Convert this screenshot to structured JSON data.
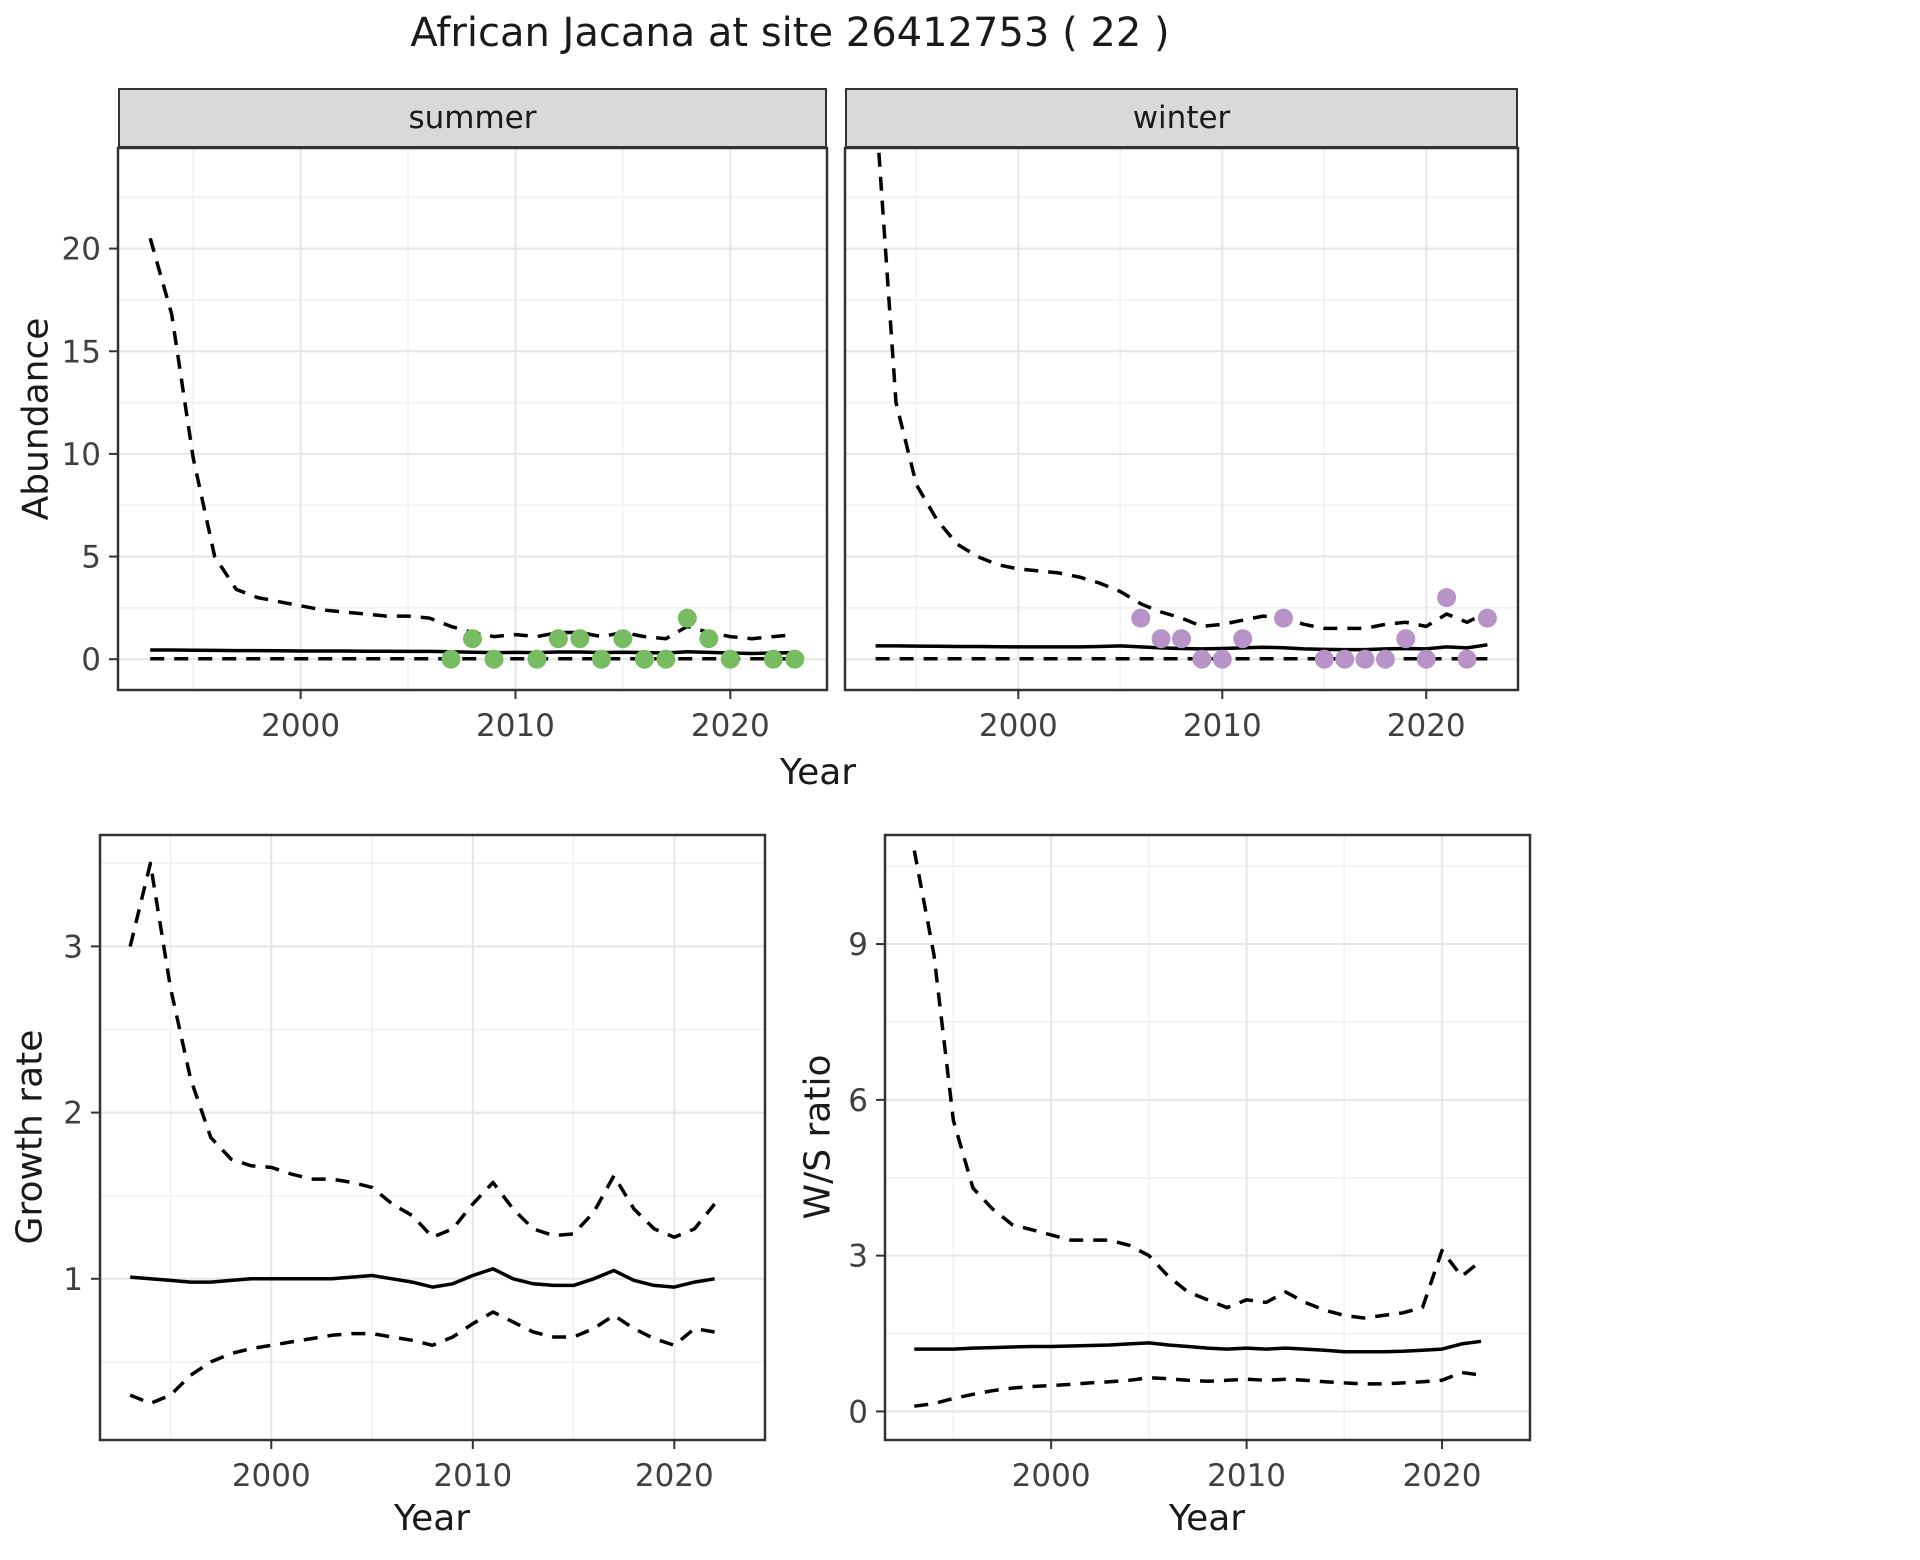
{
  "title": "African Jacana at site 26412753 ( 22 )",
  "axis": {
    "x": "Year"
  },
  "colors": {
    "summer_point": "#78bc62",
    "winter_point": "#b793c8",
    "line": "#000000",
    "grid_major": "#e6e6e6",
    "grid_minor": "#f1f1f1",
    "panel_border": "#333333",
    "strip_bg": "#d9d9d9",
    "tick_label": "#404040"
  },
  "chart_data": [
    {
      "id": "summer",
      "type": "line",
      "facet_label": "summer",
      "title": "",
      "xlabel": "Year",
      "ylabel": "Abundance",
      "xlim": [
        1991.5,
        2024.5
      ],
      "ylim": [
        -1.5,
        24.9
      ],
      "x_ticks": [
        2000,
        2010,
        2020
      ],
      "y_ticks": [
        0,
        5,
        10,
        15,
        20
      ],
      "x_minor": [
        1995,
        2005,
        2015
      ],
      "y_minor": [
        2.5,
        7.5,
        12.5,
        17.5,
        22.5
      ],
      "show_y_tick_labels": true,
      "series": [
        {
          "name": "upper_ci",
          "style": "dashed",
          "x": [
            1993,
            1994,
            1995,
            1996,
            1997,
            1998,
            1999,
            2000,
            2001,
            2002,
            2003,
            2004,
            2005,
            2006,
            2007,
            2008,
            2009,
            2010,
            2011,
            2012,
            2013,
            2014,
            2015,
            2016,
            2017,
            2018,
            2019,
            2020,
            2021,
            2022,
            2023
          ],
          "y": [
            20.5,
            16.8,
            9.8,
            5.0,
            3.4,
            3.0,
            2.8,
            2.6,
            2.4,
            2.3,
            2.2,
            2.1,
            2.1,
            2.0,
            1.6,
            1.3,
            1.1,
            1.2,
            1.1,
            1.3,
            1.3,
            1.1,
            1.3,
            1.1,
            1.0,
            1.6,
            1.3,
            1.1,
            1.0,
            1.1,
            1.2
          ]
        },
        {
          "name": "median",
          "style": "solid",
          "x": [
            1993,
            1994,
            1995,
            1996,
            1997,
            1998,
            1999,
            2000,
            2001,
            2002,
            2003,
            2004,
            2005,
            2006,
            2007,
            2008,
            2009,
            2010,
            2011,
            2012,
            2013,
            2014,
            2015,
            2016,
            2017,
            2018,
            2019,
            2020,
            2021,
            2022,
            2023
          ],
          "y": [
            0.45,
            0.45,
            0.44,
            0.43,
            0.42,
            0.42,
            0.41,
            0.4,
            0.4,
            0.4,
            0.39,
            0.39,
            0.38,
            0.38,
            0.36,
            0.34,
            0.32,
            0.33,
            0.32,
            0.35,
            0.35,
            0.32,
            0.34,
            0.32,
            0.3,
            0.36,
            0.33,
            0.3,
            0.28,
            0.3,
            0.32
          ]
        },
        {
          "name": "lower_ci",
          "style": "dashed",
          "x": [
            1993,
            1994,
            1995,
            1996,
            1997,
            1998,
            1999,
            2000,
            2001,
            2002,
            2003,
            2004,
            2005,
            2006,
            2007,
            2008,
            2009,
            2010,
            2011,
            2012,
            2013,
            2014,
            2015,
            2016,
            2017,
            2018,
            2019,
            2020,
            2021,
            2022,
            2023
          ],
          "y": [
            0.02,
            0.02,
            0.02,
            0.02,
            0.02,
            0.02,
            0.02,
            0.02,
            0.02,
            0.02,
            0.02,
            0.02,
            0.02,
            0.02,
            0.02,
            0.02,
            0.02,
            0.02,
            0.02,
            0.02,
            0.02,
            0.02,
            0.02,
            0.02,
            0.02,
            0.02,
            0.02,
            0.02,
            0.02,
            0.02,
            0.02
          ]
        }
      ],
      "points": {
        "color": "#78bc62",
        "x": [
          2007,
          2008,
          2009,
          2011,
          2012,
          2013,
          2014,
          2015,
          2016,
          2017,
          2018,
          2019,
          2020,
          2022,
          2023
        ],
        "y": [
          0,
          1,
          0,
          0,
          1,
          1,
          0,
          1,
          0,
          0,
          2,
          1,
          0,
          0,
          0
        ]
      }
    },
    {
      "id": "winter",
      "type": "line",
      "facet_label": "winter",
      "title": "",
      "xlabel": "Year",
      "ylabel": "Abundance",
      "xlim": [
        1991.5,
        2024.5
      ],
      "ylim": [
        -1.5,
        24.9
      ],
      "x_ticks": [
        2000,
        2010,
        2020
      ],
      "y_ticks": [
        0,
        5,
        10,
        15,
        20
      ],
      "x_minor": [
        1995,
        2005,
        2015
      ],
      "y_minor": [
        2.5,
        7.5,
        12.5,
        17.5,
        22.5
      ],
      "show_y_tick_labels": false,
      "series": [
        {
          "name": "upper_ci",
          "style": "dashed",
          "x": [
            1993,
            1994,
            1995,
            1996,
            1997,
            1998,
            1999,
            2000,
            2001,
            2002,
            2003,
            2004,
            2005,
            2006,
            2007,
            2008,
            2009,
            2010,
            2011,
            2012,
            2013,
            2014,
            2015,
            2016,
            2017,
            2018,
            2019,
            2020,
            2021,
            2022,
            2023
          ],
          "y": [
            27.0,
            12.5,
            8.5,
            6.8,
            5.6,
            5.0,
            4.6,
            4.4,
            4.3,
            4.2,
            4.0,
            3.7,
            3.3,
            2.7,
            2.3,
            2.0,
            1.6,
            1.7,
            1.9,
            2.1,
            2.0,
            1.7,
            1.5,
            1.5,
            1.5,
            1.7,
            1.8,
            1.6,
            2.2,
            1.8,
            2.3
          ]
        },
        {
          "name": "median",
          "style": "solid",
          "x": [
            1993,
            1994,
            1995,
            1996,
            1997,
            1998,
            1999,
            2000,
            2001,
            2002,
            2003,
            2004,
            2005,
            2006,
            2007,
            2008,
            2009,
            2010,
            2011,
            2012,
            2013,
            2014,
            2015,
            2016,
            2017,
            2018,
            2019,
            2020,
            2021,
            2022,
            2023
          ],
          "y": [
            0.65,
            0.65,
            0.64,
            0.63,
            0.62,
            0.62,
            0.61,
            0.6,
            0.6,
            0.6,
            0.6,
            0.62,
            0.65,
            0.6,
            0.55,
            0.52,
            0.5,
            0.52,
            0.55,
            0.58,
            0.56,
            0.5,
            0.48,
            0.47,
            0.47,
            0.5,
            0.52,
            0.5,
            0.6,
            0.55,
            0.7
          ]
        },
        {
          "name": "lower_ci",
          "style": "dashed",
          "x": [
            1993,
            1994,
            1995,
            1996,
            1997,
            1998,
            1999,
            2000,
            2001,
            2002,
            2003,
            2004,
            2005,
            2006,
            2007,
            2008,
            2009,
            2010,
            2011,
            2012,
            2013,
            2014,
            2015,
            2016,
            2017,
            2018,
            2019,
            2020,
            2021,
            2022,
            2023
          ],
          "y": [
            0.02,
            0.02,
            0.02,
            0.02,
            0.02,
            0.02,
            0.02,
            0.02,
            0.02,
            0.02,
            0.02,
            0.02,
            0.02,
            0.02,
            0.02,
            0.02,
            0.02,
            0.02,
            0.02,
            0.02,
            0.02,
            0.02,
            0.02,
            0.02,
            0.02,
            0.02,
            0.02,
            0.02,
            0.02,
            0.02,
            0.02
          ]
        }
      ],
      "points": {
        "color": "#b793c8",
        "x": [
          2006,
          2007,
          2008,
          2009,
          2010,
          2011,
          2013,
          2015,
          2016,
          2017,
          2018,
          2019,
          2020,
          2021,
          2022,
          2023
        ],
        "y": [
          2,
          1,
          1,
          0,
          0,
          1,
          2,
          0,
          0,
          0,
          0,
          1,
          0,
          3,
          0,
          2
        ]
      }
    },
    {
      "id": "growth",
      "type": "line",
      "facet_label": "",
      "title": "",
      "xlabel": "Year",
      "ylabel": "Growth rate",
      "xlim": [
        1991.5,
        2024.5
      ],
      "ylim": [
        0.03,
        3.67
      ],
      "x_ticks": [
        2000,
        2010,
        2020
      ],
      "y_ticks": [
        1,
        2,
        3
      ],
      "x_minor": [
        1995,
        2005,
        2015
      ],
      "y_minor": [
        0.5,
        1.5,
        2.5,
        3.5
      ],
      "show_y_tick_labels": true,
      "series": [
        {
          "name": "upper_ci",
          "style": "dashed",
          "x": [
            1993,
            1994,
            1995,
            1996,
            1997,
            1998,
            1999,
            2000,
            2001,
            2002,
            2003,
            2004,
            2005,
            2006,
            2007,
            2008,
            2009,
            2010,
            2011,
            2012,
            2013,
            2014,
            2015,
            2016,
            2017,
            2018,
            2019,
            2020,
            2021,
            2022
          ],
          "y": [
            3.0,
            3.5,
            2.75,
            2.2,
            1.85,
            1.72,
            1.68,
            1.67,
            1.63,
            1.6,
            1.6,
            1.58,
            1.55,
            1.45,
            1.38,
            1.25,
            1.3,
            1.45,
            1.58,
            1.42,
            1.3,
            1.26,
            1.27,
            1.4,
            1.62,
            1.42,
            1.3,
            1.25,
            1.3,
            1.45
          ]
        },
        {
          "name": "median",
          "style": "solid",
          "x": [
            1993,
            1994,
            1995,
            1996,
            1997,
            1998,
            1999,
            2000,
            2001,
            2002,
            2003,
            2004,
            2005,
            2006,
            2007,
            2008,
            2009,
            2010,
            2011,
            2012,
            2013,
            2014,
            2015,
            2016,
            2017,
            2018,
            2019,
            2020,
            2021,
            2022
          ],
          "y": [
            1.01,
            1.0,
            0.99,
            0.98,
            0.98,
            0.99,
            1.0,
            1.0,
            1.0,
            1.0,
            1.0,
            1.01,
            1.02,
            1.0,
            0.98,
            0.95,
            0.97,
            1.02,
            1.06,
            1.0,
            0.97,
            0.96,
            0.96,
            1.0,
            1.05,
            0.99,
            0.96,
            0.95,
            0.98,
            1.0
          ]
        },
        {
          "name": "lower_ci",
          "style": "dashed",
          "x": [
            1993,
            1994,
            1995,
            1996,
            1997,
            1998,
            1999,
            2000,
            2001,
            2002,
            2003,
            2004,
            2005,
            2006,
            2007,
            2008,
            2009,
            2010,
            2011,
            2012,
            2013,
            2014,
            2015,
            2016,
            2017,
            2018,
            2019,
            2020,
            2021,
            2022
          ],
          "y": [
            0.3,
            0.25,
            0.3,
            0.42,
            0.5,
            0.55,
            0.58,
            0.6,
            0.62,
            0.64,
            0.66,
            0.67,
            0.67,
            0.65,
            0.63,
            0.6,
            0.65,
            0.73,
            0.8,
            0.74,
            0.68,
            0.65,
            0.65,
            0.7,
            0.78,
            0.7,
            0.64,
            0.6,
            0.7,
            0.68
          ]
        }
      ],
      "points": null
    },
    {
      "id": "ratio",
      "type": "line",
      "facet_label": "",
      "title": "",
      "xlabel": "Year",
      "ylabel": "W/S ratio",
      "xlim": [
        1991.5,
        2024.5
      ],
      "ylim": [
        -0.55,
        11.1
      ],
      "x_ticks": [
        2000,
        2010,
        2020
      ],
      "y_ticks": [
        0,
        3,
        6,
        9
      ],
      "x_minor": [
        1995,
        2005,
        2015
      ],
      "y_minor": [
        1.5,
        4.5,
        7.5,
        10.5
      ],
      "show_y_tick_labels": true,
      "series": [
        {
          "name": "upper_ci",
          "style": "dashed",
          "x": [
            1993,
            1994,
            1995,
            1996,
            1997,
            1998,
            1999,
            2000,
            2001,
            2002,
            2003,
            2004,
            2005,
            2006,
            2007,
            2008,
            2009,
            2010,
            2011,
            2012,
            2013,
            2014,
            2015,
            2016,
            2017,
            2018,
            2019,
            2020,
            2021,
            2022
          ],
          "y": [
            10.8,
            8.8,
            5.6,
            4.3,
            3.9,
            3.6,
            3.5,
            3.4,
            3.3,
            3.3,
            3.3,
            3.2,
            3.0,
            2.6,
            2.3,
            2.15,
            2.0,
            2.15,
            2.1,
            2.3,
            2.1,
            1.95,
            1.85,
            1.8,
            1.85,
            1.9,
            2.0,
            3.1,
            2.6,
            2.9
          ]
        },
        {
          "name": "median",
          "style": "solid",
          "x": [
            1993,
            1994,
            1995,
            1996,
            1997,
            1998,
            1999,
            2000,
            2001,
            2002,
            2003,
            2004,
            2005,
            2006,
            2007,
            2008,
            2009,
            2010,
            2011,
            2012,
            2013,
            2014,
            2015,
            2016,
            2017,
            2018,
            2019,
            2020,
            2021,
            2022
          ],
          "y": [
            1.2,
            1.2,
            1.2,
            1.22,
            1.23,
            1.24,
            1.25,
            1.25,
            1.26,
            1.27,
            1.28,
            1.3,
            1.32,
            1.28,
            1.25,
            1.22,
            1.2,
            1.22,
            1.2,
            1.22,
            1.2,
            1.18,
            1.15,
            1.15,
            1.15,
            1.16,
            1.18,
            1.2,
            1.3,
            1.35
          ]
        },
        {
          "name": "lower_ci",
          "style": "dashed",
          "x": [
            1993,
            1994,
            1995,
            1996,
            1997,
            1998,
            1999,
            2000,
            2001,
            2002,
            2003,
            2004,
            2005,
            2006,
            2007,
            2008,
            2009,
            2010,
            2011,
            2012,
            2013,
            2014,
            2015,
            2016,
            2017,
            2018,
            2019,
            2020,
            2021,
            2022
          ],
          "y": [
            0.1,
            0.15,
            0.25,
            0.33,
            0.4,
            0.45,
            0.48,
            0.5,
            0.52,
            0.55,
            0.57,
            0.6,
            0.65,
            0.63,
            0.6,
            0.58,
            0.6,
            0.62,
            0.6,
            0.62,
            0.6,
            0.57,
            0.55,
            0.53,
            0.53,
            0.55,
            0.57,
            0.6,
            0.75,
            0.7
          ]
        }
      ],
      "points": null
    }
  ]
}
